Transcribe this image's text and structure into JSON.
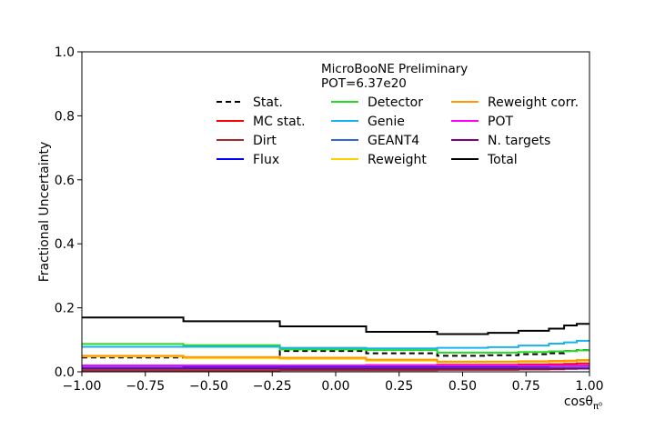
{
  "chart_data": {
    "type": "line",
    "title": "",
    "annotations": [
      "MicroBooNE Preliminary",
      "POT=6.37e20"
    ],
    "xlabel_main": "cosθ",
    "xlabel_sub": "π⁰",
    "ylabel": "Fractional Uncertainty",
    "xlim": [
      -1.0,
      1.0
    ],
    "ylim": [
      0.0,
      1.0
    ],
    "x_ticks": [
      {
        "value": -1.0,
        "label": "−1.00"
      },
      {
        "value": -0.75,
        "label": "−0.75"
      },
      {
        "value": -0.5,
        "label": "−0.50"
      },
      {
        "value": -0.25,
        "label": "−0.25"
      },
      {
        "value": 0.0,
        "label": "0.00"
      },
      {
        "value": 0.25,
        "label": "0.25"
      },
      {
        "value": 0.5,
        "label": "0.50"
      },
      {
        "value": 0.75,
        "label": "0.75"
      },
      {
        "value": 1.0,
        "label": "1.00"
      }
    ],
    "y_ticks": [
      {
        "value": 0.0,
        "label": "0.0"
      },
      {
        "value": 0.2,
        "label": "0.2"
      },
      {
        "value": 0.4,
        "label": "0.4"
      },
      {
        "value": 0.6,
        "label": "0.6"
      },
      {
        "value": 0.8,
        "label": "0.8"
      },
      {
        "value": 1.0,
        "label": "1.0"
      }
    ],
    "bin_edges": [
      -1.0,
      -0.6,
      -0.22,
      0.12,
      0.4,
      0.6,
      0.72,
      0.84,
      0.9,
      0.95,
      1.0
    ],
    "grid": false,
    "legend_position": "top-right",
    "series": [
      {
        "name": "Stat.",
        "color": "#000000",
        "dashed": true,
        "values": [
          0.045,
          0.044,
          0.065,
          0.058,
          0.05,
          0.052,
          0.055,
          0.058,
          0.065,
          0.068
        ]
      },
      {
        "name": "MC stat.",
        "color": "#ff0000",
        "dashed": false,
        "values": [
          0.02,
          0.02,
          0.02,
          0.021,
          0.022,
          0.022,
          0.023,
          0.024,
          0.025,
          0.026
        ]
      },
      {
        "name": "Dirt",
        "color": "#a52a2a",
        "dashed": false,
        "values": [
          0.004,
          0.004,
          0.005,
          0.005,
          0.006,
          0.006,
          0.007,
          0.008,
          0.009,
          0.01
        ]
      },
      {
        "name": "Flux",
        "color": "#0000ff",
        "dashed": false,
        "values": [
          0.013,
          0.014,
          0.015,
          0.016,
          0.017,
          0.017,
          0.018,
          0.019,
          0.02,
          0.02
        ]
      },
      {
        "name": "Detector",
        "color": "#22dd22",
        "dashed": false,
        "values": [
          0.087,
          0.083,
          0.07,
          0.068,
          0.06,
          0.06,
          0.062,
          0.064,
          0.065,
          0.067
        ]
      },
      {
        "name": "Genie",
        "color": "#1ab2ee",
        "dashed": false,
        "values": [
          0.078,
          0.078,
          0.075,
          0.073,
          0.075,
          0.077,
          0.082,
          0.088,
          0.092,
          0.097
        ]
      },
      {
        "name": "GEANT4",
        "color": "#3366dd",
        "dashed": false,
        "values": [
          0.011,
          0.011,
          0.012,
          0.012,
          0.012,
          0.012,
          0.013,
          0.013,
          0.014,
          0.014
        ]
      },
      {
        "name": "Reweight",
        "color": "#ffd000",
        "dashed": false,
        "values": [
          0.048,
          0.043,
          0.041,
          0.035,
          0.03,
          0.03,
          0.031,
          0.032,
          0.033,
          0.035
        ]
      },
      {
        "name": "Reweight corr.",
        "color": "#ff9900",
        "dashed": false,
        "values": [
          0.05,
          0.046,
          0.044,
          0.038,
          0.032,
          0.032,
          0.033,
          0.034,
          0.035,
          0.037
        ]
      },
      {
        "name": "POT",
        "color": "#ff00ff",
        "dashed": false,
        "values": [
          0.02,
          0.02,
          0.02,
          0.02,
          0.02,
          0.02,
          0.02,
          0.02,
          0.02,
          0.02
        ]
      },
      {
        "name": "N. targets",
        "color": "#800080",
        "dashed": false,
        "values": [
          0.01,
          0.01,
          0.01,
          0.01,
          0.01,
          0.01,
          0.01,
          0.01,
          0.01,
          0.01
        ]
      },
      {
        "name": "Total",
        "color": "#000000",
        "dashed": false,
        "values": [
          0.17,
          0.158,
          0.142,
          0.125,
          0.118,
          0.122,
          0.128,
          0.135,
          0.145,
          0.15
        ]
      }
    ]
  }
}
